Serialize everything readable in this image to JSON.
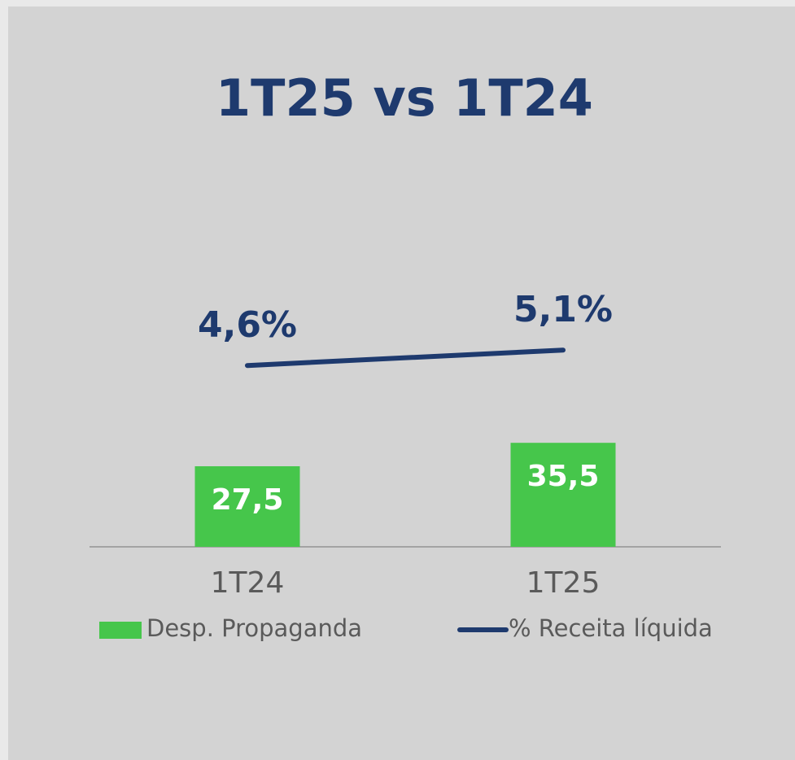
{
  "chart_data": {
    "type": "combo",
    "title": "1T25 vs 1T24",
    "categories": [
      "1T24",
      "1T25"
    ],
    "series": [
      {
        "name": "Desp. Propaganda",
        "type": "bar",
        "color": "#46c64b",
        "values": [
          27.5,
          35.5
        ],
        "value_labels": [
          "27,5",
          "35,5"
        ]
      },
      {
        "name": "% Receita líquida",
        "type": "line",
        "axis": "y2",
        "color": "#1e3a6e",
        "values": [
          4.6,
          5.1
        ],
        "value_labels": [
          "4,6%",
          "5,1%"
        ]
      }
    ],
    "ylim": [
      0,
      100
    ],
    "y2lim": [
      0,
      6
    ],
    "grid": false,
    "legend": "bottom"
  }
}
